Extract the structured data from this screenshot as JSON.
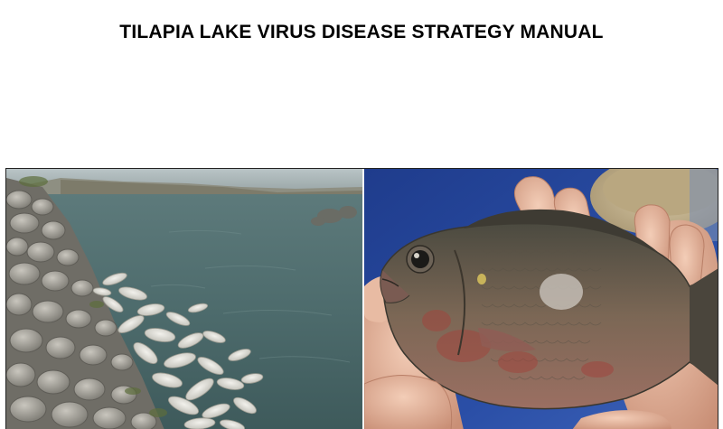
{
  "document": {
    "title": "TILAPIA LAKE VIRUS DISEASE STRATEGY MANUAL"
  },
  "photos": [
    {
      "subject": "dead-fish-on-lakeshore"
    },
    {
      "subject": "tilapia-held-in-hands"
    }
  ],
  "colors": {
    "text": "#000000",
    "frame": "#222222",
    "water": "#4a6a6c",
    "rocks": "#8c8a84",
    "fish_body": "#6e5d4f",
    "skin_hand": "#e2b39c"
  }
}
